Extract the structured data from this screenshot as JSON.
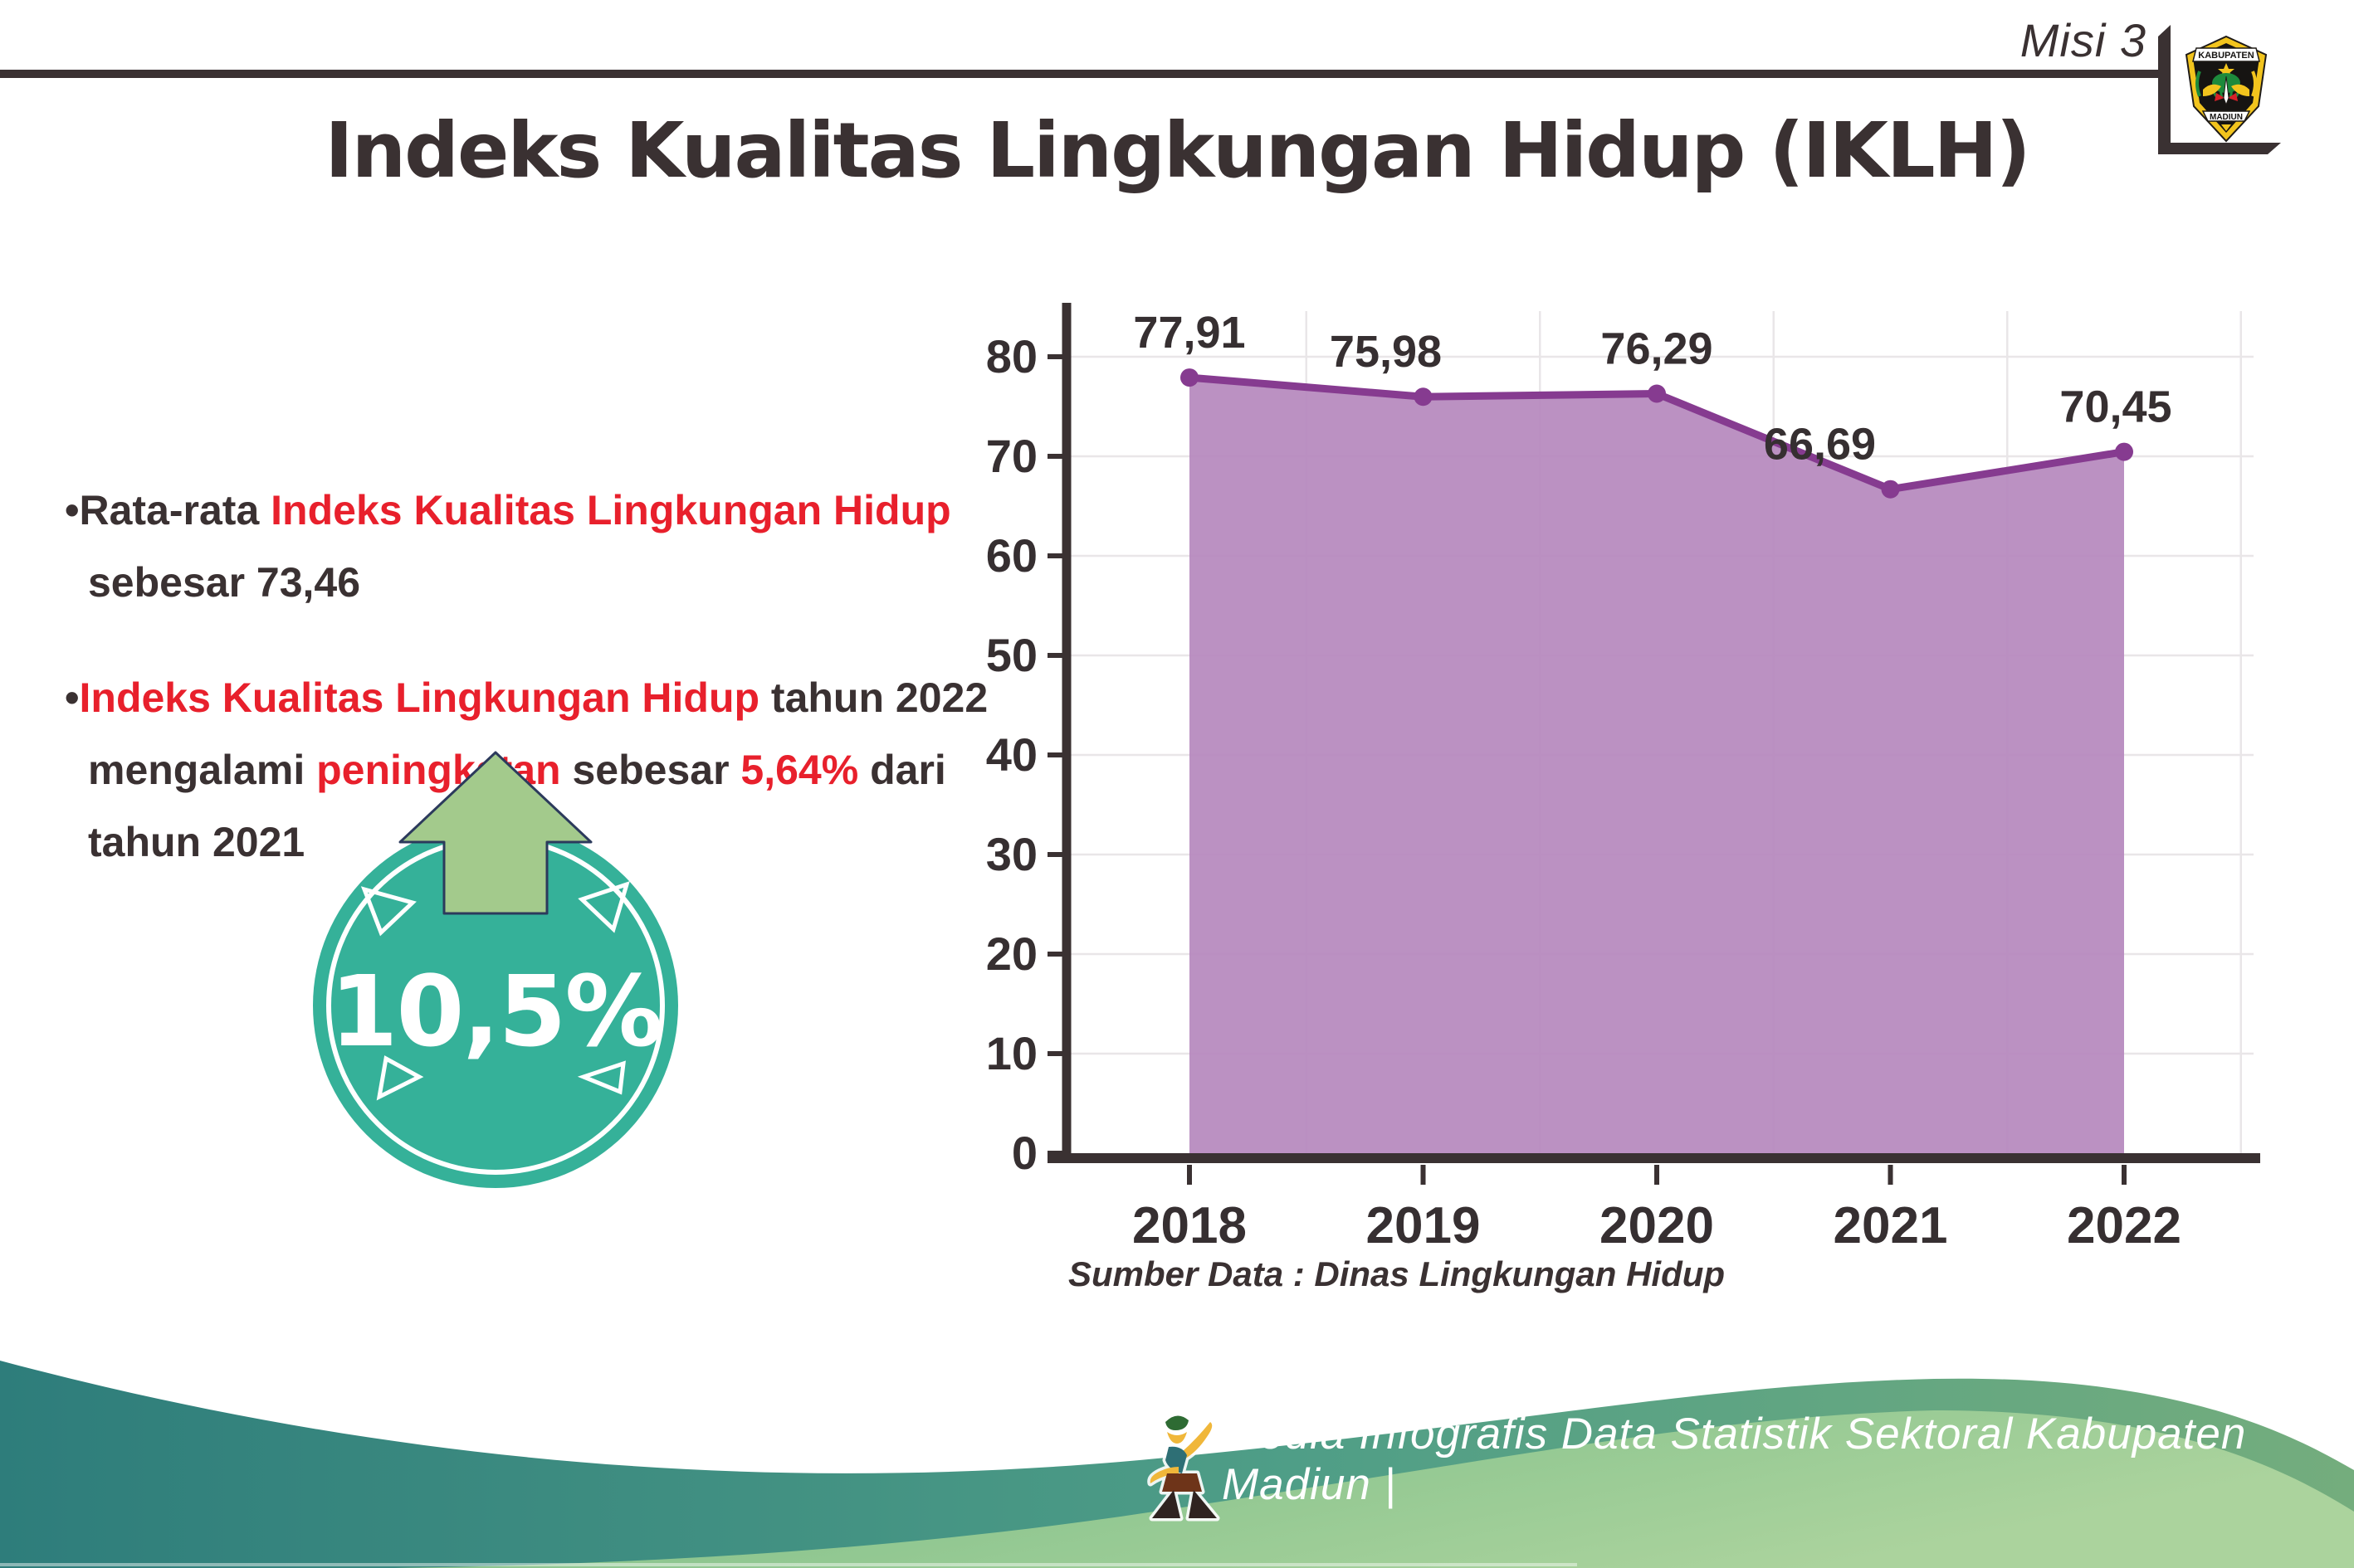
{
  "header": {
    "misi_label": "Misi 3",
    "title": "Indeks Kualitas Lingkungan Hidup (IKLH)"
  },
  "logo": {
    "top_text": "KABUPATEN",
    "bottom_text": "MADIUN"
  },
  "insights": {
    "bullet1": {
      "segments": [
        {
          "text": "•Rata-rata ",
          "color": "dark"
        },
        {
          "text": "Indeks Kualitas Lingkungan Hidup",
          "color": "red"
        },
        {
          "text": "\nsebesar 73,46",
          "color": "dark"
        }
      ]
    },
    "bullet2": {
      "segments": [
        {
          "text": "•",
          "color": "dark"
        },
        {
          "text": "Indeks Kualitas Lingkungan Hidup",
          "color": "red"
        },
        {
          "text": " tahun 2022\nmengalami ",
          "color": "dark"
        },
        {
          "text": "peningkatan",
          "color": "red"
        },
        {
          "text": " sebesar ",
          "color": "dark"
        },
        {
          "text": "5,64%",
          "color": "red"
        },
        {
          "text": " dari\ntahun 2021",
          "color": "dark"
        }
      ]
    }
  },
  "badge": {
    "value": "10,5%",
    "icon": "arrow-up-icon",
    "circle_color": "#35b199",
    "arrow_fill": "#a3ca8c",
    "arrow_outline": "#2c3a5c"
  },
  "chart_data": {
    "type": "area",
    "title": "",
    "xlabel": "",
    "ylabel": "",
    "categories": [
      "2018",
      "2019",
      "2020",
      "2021",
      "2022"
    ],
    "values": [
      77.91,
      75.98,
      76.29,
      66.69,
      70.45
    ],
    "value_labels": [
      "77,91",
      "75,98",
      "76,29",
      "66,69",
      "70,45"
    ],
    "label_offsets": [
      0,
      -45,
      0,
      -85,
      -10
    ],
    "ylim": [
      0,
      80
    ],
    "yticks": [
      0,
      10,
      20,
      30,
      40,
      50,
      60,
      70,
      80
    ],
    "grid": true,
    "legend": "none",
    "area_color": "#b588bd",
    "line_color": "#863b90",
    "marker_color": "#863b90",
    "grid_color": "#e9e6e8",
    "axis_color": "#3a3132",
    "label_color": "#362f31"
  },
  "source_note": "Sumber Data : Dinas Lingkungan Hidup",
  "footer": {
    "caption": "Media Infografis Data Statistik Sektoral Kabupaten Madiun |",
    "mascot": "dancer-mascot-icon"
  },
  "colors": {
    "accent_red": "#e8202c",
    "ink": "#3a3132",
    "teal_wave": "#2e7d7b",
    "green_wave": "#8ac28c"
  }
}
